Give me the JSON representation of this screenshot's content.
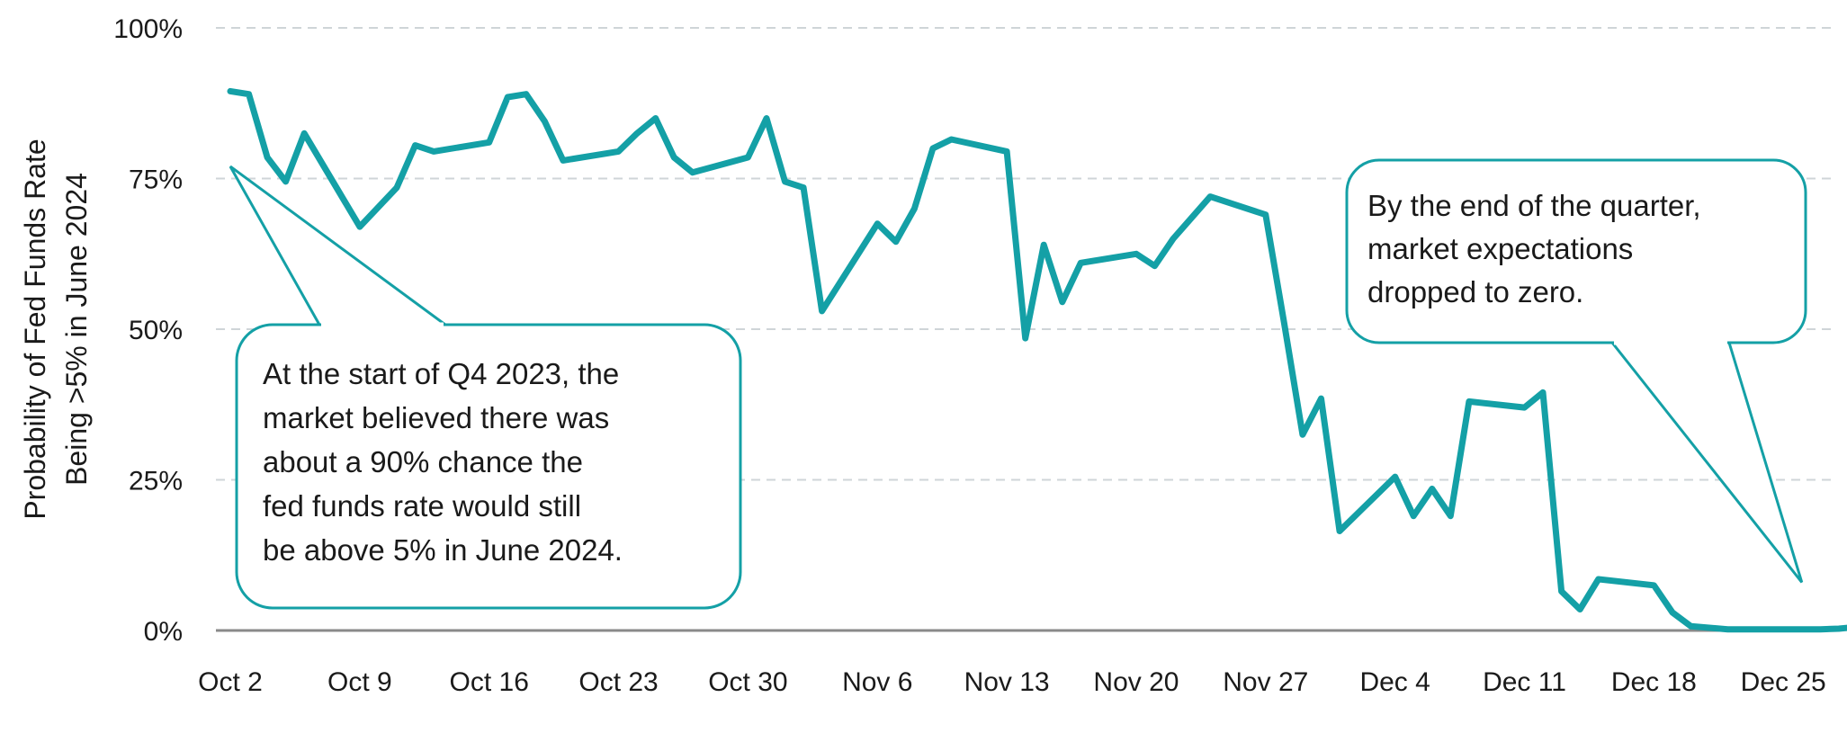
{
  "chart_data": {
    "type": "line",
    "ylabel_lines": [
      "Probability of Fed Funds Rate",
      "Being >5% in June 2024"
    ],
    "ytick_labels": [
      "0%",
      "25%",
      "50%",
      "75%",
      "100%"
    ],
    "ytick_values": [
      0,
      25,
      50,
      75,
      100
    ],
    "ylim": [
      0,
      100
    ],
    "x_range": [
      "2023-10-02",
      "2023-12-29"
    ],
    "xtick_labels": [
      "Oct 2",
      "Oct 9",
      "Oct 16",
      "Oct 23",
      "Oct 30",
      "Nov 6",
      "Nov 13",
      "Nov 20",
      "Nov 27",
      "Dec 4",
      "Dec 11",
      "Dec 18",
      "Dec 25"
    ],
    "xtick_dates": [
      "2023-10-02",
      "2023-10-09",
      "2023-10-16",
      "2023-10-23",
      "2023-10-30",
      "2023-11-06",
      "2023-11-13",
      "2023-11-20",
      "2023-11-27",
      "2023-12-04",
      "2023-12-11",
      "2023-12-18",
      "2023-12-25"
    ],
    "grid": "horizontal dashed",
    "line_color": "#14a0a6",
    "callout_color": "#14a0a6",
    "series": [
      {
        "points": [
          {
            "x": "2023-10-02",
            "y": 89.5
          },
          {
            "x": "2023-10-03",
            "y": 89.0
          },
          {
            "x": "2023-10-04",
            "y": 78.5
          },
          {
            "x": "2023-10-05",
            "y": 74.5
          },
          {
            "x": "2023-10-06",
            "y": 82.5
          },
          {
            "x": "2023-10-09",
            "y": 67.0
          },
          {
            "x": "2023-10-11",
            "y": 73.5
          },
          {
            "x": "2023-10-12",
            "y": 80.5
          },
          {
            "x": "2023-10-13",
            "y": 79.5
          },
          {
            "x": "2023-10-16",
            "y": 81.0
          },
          {
            "x": "2023-10-17",
            "y": 88.5
          },
          {
            "x": "2023-10-18",
            "y": 89.0
          },
          {
            "x": "2023-10-19",
            "y": 84.5
          },
          {
            "x": "2023-10-20",
            "y": 78.0
          },
          {
            "x": "2023-10-23",
            "y": 79.5
          },
          {
            "x": "2023-10-24",
            "y": 82.5
          },
          {
            "x": "2023-10-25",
            "y": 85.0
          },
          {
            "x": "2023-10-26",
            "y": 78.5
          },
          {
            "x": "2023-10-27",
            "y": 76.0
          },
          {
            "x": "2023-10-30",
            "y": 78.5
          },
          {
            "x": "2023-10-31",
            "y": 85.0
          },
          {
            "x": "2023-11-01",
            "y": 74.5
          },
          {
            "x": "2023-11-02",
            "y": 73.5
          },
          {
            "x": "2023-11-03",
            "y": 53.0
          },
          {
            "x": "2023-11-06",
            "y": 67.5
          },
          {
            "x": "2023-11-07",
            "y": 64.5
          },
          {
            "x": "2023-11-08",
            "y": 70.0
          },
          {
            "x": "2023-11-09",
            "y": 80.0
          },
          {
            "x": "2023-11-10",
            "y": 81.5
          },
          {
            "x": "2023-11-13",
            "y": 79.5
          },
          {
            "x": "2023-11-14",
            "y": 48.5
          },
          {
            "x": "2023-11-15",
            "y": 64.0
          },
          {
            "x": "2023-11-16",
            "y": 54.5
          },
          {
            "x": "2023-11-17",
            "y": 61.0
          },
          {
            "x": "2023-11-20",
            "y": 62.5
          },
          {
            "x": "2023-11-21",
            "y": 60.5
          },
          {
            "x": "2023-11-22",
            "y": 65.0
          },
          {
            "x": "2023-11-24",
            "y": 72.0
          },
          {
            "x": "2023-11-27",
            "y": 69.0
          },
          {
            "x": "2023-11-28",
            "y": 51.0
          },
          {
            "x": "2023-11-29",
            "y": 32.5
          },
          {
            "x": "2023-11-30",
            "y": 38.5
          },
          {
            "x": "2023-12-01",
            "y": 16.5
          },
          {
            "x": "2023-12-04",
            "y": 25.5
          },
          {
            "x": "2023-12-05",
            "y": 19.0
          },
          {
            "x": "2023-12-06",
            "y": 23.5
          },
          {
            "x": "2023-12-07",
            "y": 19.0
          },
          {
            "x": "2023-12-08",
            "y": 38.0
          },
          {
            "x": "2023-12-11",
            "y": 37.0
          },
          {
            "x": "2023-12-12",
            "y": 39.5
          },
          {
            "x": "2023-12-13",
            "y": 6.5
          },
          {
            "x": "2023-12-14",
            "y": 3.5
          },
          {
            "x": "2023-12-15",
            "y": 8.5
          },
          {
            "x": "2023-12-18",
            "y": 7.5
          },
          {
            "x": "2023-12-19",
            "y": 3.0
          },
          {
            "x": "2023-12-20",
            "y": 0.7
          },
          {
            "x": "2023-12-22",
            "y": 0.2
          },
          {
            "x": "2023-12-26",
            "y": 0.2
          },
          {
            "x": "2023-12-27",
            "y": 0.2
          },
          {
            "x": "2023-12-28",
            "y": 0.3
          },
          {
            "x": "2023-12-29",
            "y": 0.6
          }
        ]
      }
    ],
    "annotations": [
      {
        "lines": [
          "At the start of Q4 2023, the",
          "market believed there was",
          "about a 90% chance the",
          "fed funds rate would still",
          "be above 5% in June 2024."
        ],
        "target": {
          "x": "2023-10-02",
          "y": 77
        }
      },
      {
        "lines": [
          "By the end of the quarter,",
          "market expectations",
          "dropped to zero."
        ],
        "target": {
          "x": "2023-12-26",
          "y": 8
        }
      }
    ]
  }
}
